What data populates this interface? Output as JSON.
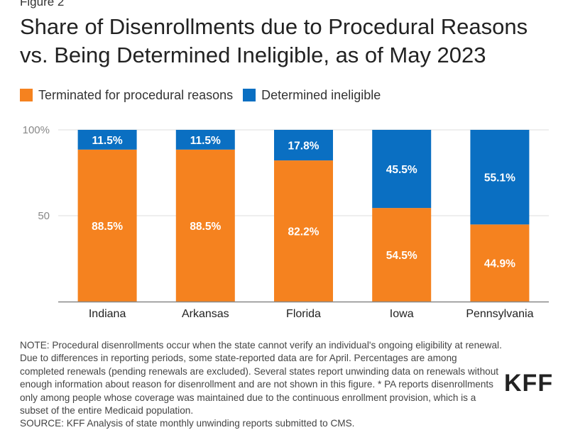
{
  "figure_label": "Figure 2",
  "title": "Share of Disenrollments due to Procedural Reasons vs. Being Determined Ineligible, as of May 2023",
  "colors": {
    "procedural": "#f5821f",
    "ineligible": "#0a6fc2",
    "grid": "#dddddd",
    "axis": "#888888"
  },
  "chart_data": {
    "type": "bar",
    "stacked": true,
    "title": "Share of Disenrollments due to Procedural Reasons vs. Being Determined Ineligible, as of May 2023",
    "categories": [
      "Indiana",
      "Arkansas",
      "Florida",
      "Iowa",
      "Pennsylvania"
    ],
    "series": [
      {
        "name": "Terminated for procedural reasons",
        "values": [
          88.5,
          88.5,
          82.2,
          54.5,
          44.9
        ],
        "labels": [
          "88.5%",
          "88.5%",
          "82.2%",
          "54.5%",
          "44.9%"
        ]
      },
      {
        "name": "Determined ineligible",
        "values": [
          11.5,
          11.5,
          17.8,
          45.5,
          55.1
        ],
        "labels": [
          "11.5%",
          "11.5%",
          "17.8%",
          "45.5%",
          "55.1%"
        ]
      }
    ],
    "y_ticks": [
      {
        "value": 50,
        "label": "50"
      },
      {
        "value": 100,
        "label": "100%"
      }
    ],
    "ylim": [
      0,
      100
    ],
    "xlabel": "",
    "ylabel": "",
    "legend": "top-left"
  },
  "note": "NOTE: Procedural disenrollments occur when the state cannot verify an individual's ongoing eligibility at renewal. Due to differences in reporting periods, some state-reported data are for April. Percentages are among completed renewals (pending renewals are excluded). Several states report unwinding data on renewals without enough information about reason for disenrollment and are not shown in this figure. * PA reports disenrollments only among people whose coverage was maintained due to the continuous enrollment provision, which is a subset of the entire Medicaid population.",
  "source": "SOURCE: KFF Analysis of state monthly unwinding reports submitted to CMS.",
  "logo_text": "KFF"
}
